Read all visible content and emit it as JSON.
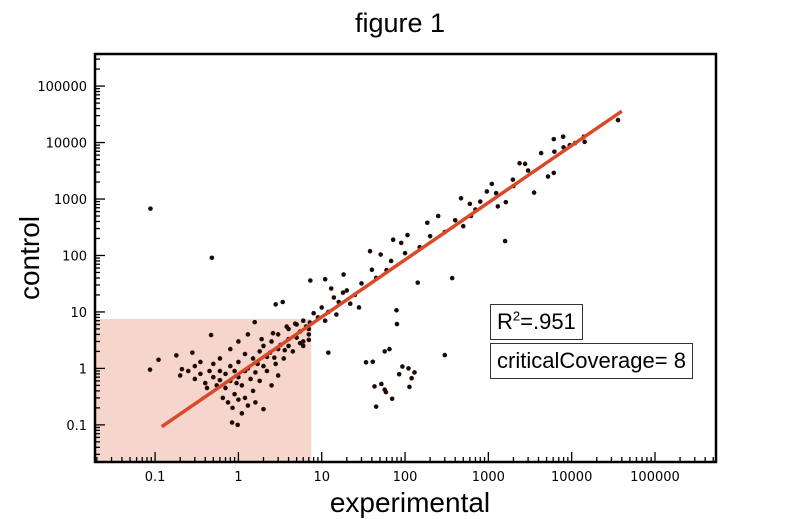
{
  "chart_data": {
    "type": "scatter",
    "title": "figure 1",
    "xlabel": "experimental",
    "ylabel": "control",
    "x_scale": "log",
    "y_scale": "log",
    "xlim": [
      0.019,
      540000
    ],
    "ylim": [
      0.022,
      370000
    ],
    "x_ticks": [
      "0.1",
      "1",
      "10",
      "100",
      "1000",
      "10000",
      "100000"
    ],
    "y_ticks": [
      "0.1",
      "1",
      "10",
      "100",
      "1000",
      "10000",
      "100000"
    ],
    "grid": false,
    "annotations": {
      "r_squared_prefix": "R",
      "r_squared_sup": "2",
      "r_squared_value": "=.951",
      "critical_coverage": "criticalCoverage= 8"
    },
    "shaded_region": {
      "x_max": 7.5,
      "y_max": 7.5,
      "color": "#f5d5cc"
    },
    "fit_line": {
      "x": [
        0.12,
        40000
      ],
      "y": [
        0.093,
        36000
      ],
      "color": "#d94a2b"
    },
    "point_color": "#1c0a03",
    "points": [
      [
        0.088,
        676
      ],
      [
        0.48,
        91
      ],
      [
        34,
        1.28
      ],
      [
        41,
        1.31
      ],
      [
        57,
        2.0
      ],
      [
        65,
        2.2
      ],
      [
        79,
        10.7
      ],
      [
        80,
        6.1
      ],
      [
        43,
        0.48
      ],
      [
        52,
        0.53
      ],
      [
        57,
        0.42
      ],
      [
        59,
        0.38
      ],
      [
        70,
        0.29
      ],
      [
        45,
        0.21
      ],
      [
        85,
        0.79
      ],
      [
        93,
        1.08
      ],
      [
        110,
        1.0
      ],
      [
        130,
        0.85
      ],
      [
        120,
        0.67
      ],
      [
        113,
        0.47
      ],
      [
        300,
        1.72
      ],
      [
        12,
        1.9
      ],
      [
        142,
        33
      ],
      [
        368,
        39.7
      ],
      [
        1590,
        180
      ],
      [
        3540,
        1300
      ],
      [
        36000,
        25000
      ],
      [
        6100,
        11500
      ],
      [
        7900,
        12700
      ],
      [
        14300,
        10300
      ],
      [
        14000,
        12700
      ],
      [
        6200,
        6900
      ],
      [
        4300,
        6500
      ],
      [
        6100,
        2900
      ],
      [
        5200,
        2500
      ],
      [
        2370,
        4300
      ],
      [
        2760,
        4200
      ],
      [
        1970,
        2200
      ],
      [
        1100,
        1850
      ],
      [
        1240,
        1270
      ],
      [
        1300,
        740
      ],
      [
        1620,
        880
      ],
      [
        960,
        1360
      ],
      [
        470,
        1030
      ],
      [
        600,
        820
      ],
      [
        620,
        500
      ],
      [
        500,
        330
      ],
      [
        250,
        500
      ],
      [
        185,
        380
      ],
      [
        107,
        230
      ],
      [
        72,
        190
      ],
      [
        90,
        167
      ],
      [
        38,
        119
      ],
      [
        51,
        104
      ],
      [
        68,
        80
      ],
      [
        40,
        56
      ],
      [
        18.3,
        46
      ],
      [
        7.3,
        36
      ],
      [
        11,
        38
      ],
      [
        2.8,
        13.6
      ],
      [
        3.4,
        15
      ],
      [
        1.57,
        6.6
      ],
      [
        0.47,
        3.9
      ],
      [
        0.28,
        1.9
      ],
      [
        0.18,
        1.7
      ],
      [
        0.11,
        1.42
      ],
      [
        0.087,
        0.95
      ],
      [
        0.21,
        0.97
      ],
      [
        0.84,
        0.11
      ],
      [
        0.98,
        0.1
      ],
      [
        2.0,
        0.19
      ],
      [
        8000,
        8200
      ],
      [
        9500,
        9000
      ],
      [
        11000,
        9800
      ],
      [
        3000,
        3200
      ],
      [
        2000,
        1700
      ],
      [
        800,
        900
      ],
      [
        700,
        650
      ],
      [
        400,
        420
      ],
      [
        300,
        260
      ],
      [
        200,
        220
      ],
      [
        150,
        140
      ],
      [
        100,
        110
      ],
      [
        60,
        55
      ],
      [
        45,
        40
      ],
      [
        30,
        32
      ],
      [
        25,
        20
      ],
      [
        20,
        24
      ],
      [
        16,
        15
      ],
      [
        14,
        18
      ],
      [
        12,
        10
      ],
      [
        10,
        12
      ],
      [
        9,
        8
      ],
      [
        8,
        9.5
      ],
      [
        11,
        7
      ],
      [
        15,
        9
      ],
      [
        22,
        14
      ],
      [
        28,
        12
      ],
      [
        18,
        22
      ],
      [
        13,
        26
      ],
      [
        6,
        7
      ],
      [
        5,
        6
      ],
      [
        7,
        5
      ],
      [
        4,
        5
      ],
      [
        5,
        3.5
      ],
      [
        3,
        4
      ],
      [
        6,
        3
      ],
      [
        4,
        2.5
      ],
      [
        3,
        2.2
      ],
      [
        2.5,
        3
      ],
      [
        2,
        2.5
      ],
      [
        2.2,
        1.6
      ],
      [
        1.8,
        2
      ],
      [
        1.5,
        1.5
      ],
      [
        1.2,
        1.8
      ],
      [
        1,
        1.3
      ],
      [
        1.3,
        1
      ],
      [
        0.9,
        0.9
      ],
      [
        0.8,
        1.1
      ],
      [
        0.7,
        0.8
      ],
      [
        0.6,
        0.9
      ],
      [
        0.5,
        0.7
      ],
      [
        0.45,
        0.9
      ],
      [
        0.35,
        0.8
      ],
      [
        0.3,
        0.65
      ],
      [
        0.4,
        0.55
      ],
      [
        0.55,
        0.5
      ],
      [
        0.7,
        0.45
      ],
      [
        0.8,
        0.6
      ],
      [
        1,
        0.7
      ],
      [
        1.1,
        0.5
      ],
      [
        0.9,
        0.35
      ],
      [
        1,
        0.28
      ],
      [
        1.2,
        0.3
      ],
      [
        1.3,
        0.22
      ],
      [
        0.85,
        0.2
      ],
      [
        1.1,
        0.16
      ],
      [
        1.5,
        0.4
      ],
      [
        1.8,
        0.6
      ],
      [
        2.2,
        0.9
      ],
      [
        2.8,
        1.2
      ],
      [
        3.5,
        1.5
      ],
      [
        4.5,
        2
      ],
      [
        6,
        2.5
      ],
      [
        7,
        4
      ],
      [
        2.5,
        0.5
      ],
      [
        3,
        0.75
      ],
      [
        1.6,
        0.25
      ],
      [
        0.6,
        1.5
      ],
      [
        0.8,
        2.2
      ],
      [
        1,
        3
      ],
      [
        1.3,
        4
      ],
      [
        0.5,
        1.2
      ],
      [
        0.35,
        1.3
      ],
      [
        0.25,
        0.9
      ],
      [
        0.2,
        0.75
      ],
      [
        0.3,
        1.1
      ],
      [
        1.7,
        1.2
      ],
      [
        2.4,
        1.9
      ],
      [
        3.2,
        2.6
      ],
      [
        4,
        3.3
      ],
      [
        5.5,
        4.5
      ],
      [
        6.5,
        5.5
      ],
      [
        7.2,
        6.5
      ],
      [
        3.8,
        5.5
      ],
      [
        2.6,
        4.2
      ],
      [
        1.9,
        3.3
      ],
      [
        4.8,
        6.2
      ],
      [
        5.5,
        2.8
      ],
      [
        7,
        3.2
      ],
      [
        0.65,
        0.3
      ],
      [
        0.75,
        0.25
      ],
      [
        1.4,
        0.65
      ],
      [
        2,
        1.1
      ],
      [
        1.2,
        0.9
      ],
      [
        0.95,
        0.55
      ],
      [
        0.6,
        0.62
      ],
      [
        0.42,
        0.45
      ],
      [
        1.6,
        0.85
      ],
      [
        2.7,
        1.55
      ],
      [
        3.6,
        2.1
      ]
    ]
  }
}
